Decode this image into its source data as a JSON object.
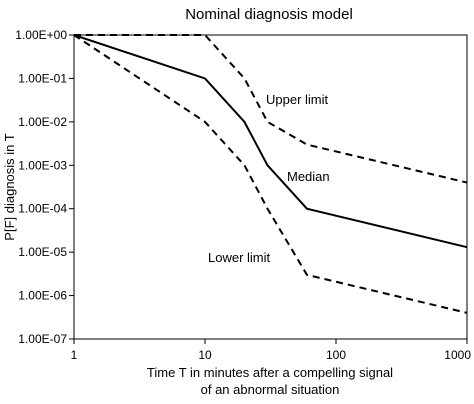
{
  "chart_data": {
    "type": "line",
    "title": "Nominal diagnosis model",
    "xlabel_line1": "Time T in minutes after a compelling signal",
    "xlabel_line2": "of an abnormal situation",
    "ylabel": "P[F] diagnosis in T",
    "x_scale": "log",
    "y_scale": "log",
    "xlim": [
      1,
      1000
    ],
    "ylim": [
      1e-07,
      1
    ],
    "x_ticks": [
      1,
      10,
      100,
      1000
    ],
    "x_tick_labels": [
      "1",
      "10",
      "100",
      "1000"
    ],
    "y_ticks": [
      1,
      0.1,
      0.01,
      0.001,
      0.0001,
      1e-05,
      1e-06,
      1e-07
    ],
    "y_tick_labels": [
      "1.00E+00",
      "1.00E-01",
      "1.00E-02",
      "1.00E-03",
      "1.00E-04",
      "1.00E-05",
      "1.00E-06",
      "1.00E-07"
    ],
    "grid": false,
    "legend": "none",
    "series": [
      {
        "name": "Upper limit",
        "style": "dashed",
        "color": "#000000",
        "x": [
          1,
          10,
          20,
          30,
          60,
          1000
        ],
        "y": [
          1,
          1,
          0.1,
          0.01,
          0.003,
          0.0004
        ]
      },
      {
        "name": "Median",
        "style": "solid",
        "color": "#000000",
        "x": [
          1,
          10,
          20,
          30,
          60,
          1000
        ],
        "y": [
          1,
          0.1,
          0.01,
          0.001,
          0.0001,
          1.3e-05
        ]
      },
      {
        "name": "Lower limit",
        "style": "dashed",
        "color": "#000000",
        "x": [
          1,
          10,
          20,
          30,
          60,
          1000
        ],
        "y": [
          1,
          0.01,
          0.001,
          0.0001,
          3e-06,
          4e-07
        ]
      }
    ]
  }
}
